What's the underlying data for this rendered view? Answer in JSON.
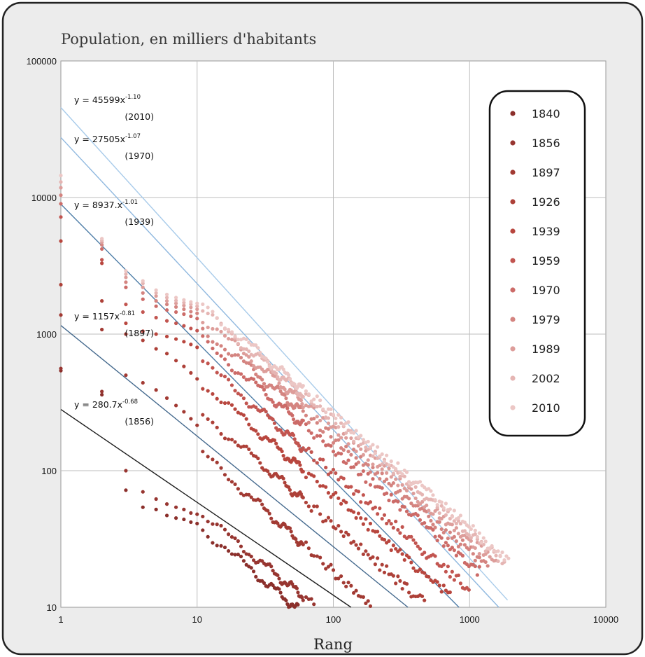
{
  "chart_data": {
    "type": "scatter",
    "title": "Population, en milliers d'habitants",
    "xlabel": "Rang",
    "ylabel": "",
    "x_scale": "log",
    "y_scale": "log",
    "xlim": [
      1,
      10000
    ],
    "ylim": [
      10,
      100000
    ],
    "x_ticks": [
      "1",
      "10",
      "100",
      "1000",
      "10000"
    ],
    "y_ticks": [
      "10",
      "100",
      "1000",
      "10000",
      "100000"
    ],
    "grid": true,
    "legend_position": "right",
    "series": [
      {
        "name": "1840",
        "color": "#8b2f2b",
        "a": 280,
        "b": 0.84,
        "n": 90,
        "lead": [
          [
            1,
            540
          ],
          [
            2,
            360
          ],
          [
            3,
            72
          ],
          [
            4,
            54
          ],
          [
            5,
            52
          ],
          [
            6,
            47
          ],
          [
            7,
            45
          ],
          [
            8,
            44
          ],
          [
            9,
            42
          ],
          [
            10,
            41
          ]
        ]
      },
      {
        "name": "1856",
        "color": "#973530",
        "a": 320,
        "b": 0.8,
        "n": 130,
        "lead": [
          [
            1,
            560
          ],
          [
            2,
            380
          ],
          [
            3,
            100
          ],
          [
            4,
            70
          ],
          [
            5,
            62
          ],
          [
            6,
            57
          ],
          [
            7,
            54
          ],
          [
            8,
            52
          ],
          [
            9,
            49
          ],
          [
            10,
            48
          ]
        ]
      },
      {
        "name": "1897",
        "color": "#a23a33",
        "a": 1150,
        "b": 0.9,
        "n": 330,
        "lead": [
          [
            1,
            1380
          ],
          [
            2,
            1080
          ],
          [
            3,
            500
          ],
          [
            4,
            440
          ],
          [
            5,
            390
          ],
          [
            6,
            340
          ],
          [
            7,
            300
          ],
          [
            8,
            270
          ],
          [
            9,
            240
          ],
          [
            10,
            215
          ]
        ]
      },
      {
        "name": "1926",
        "color": "#ad4038",
        "a": 2000,
        "b": 0.85,
        "n": 480,
        "lead": [
          [
            1,
            2300
          ],
          [
            2,
            1750
          ],
          [
            3,
            1000
          ],
          [
            4,
            900
          ],
          [
            5,
            780
          ],
          [
            6,
            720
          ],
          [
            7,
            640
          ],
          [
            8,
            580
          ],
          [
            9,
            520
          ],
          [
            10,
            470
          ]
        ]
      },
      {
        "name": "1939",
        "color": "#b8463e",
        "a": 3300,
        "b": 0.85,
        "n": 720,
        "lead": [
          [
            1,
            4800
          ],
          [
            2,
            3300
          ],
          [
            3,
            1200
          ],
          [
            4,
            1050
          ],
          [
            5,
            1000
          ],
          [
            6,
            960
          ],
          [
            7,
            920
          ],
          [
            8,
            880
          ],
          [
            9,
            840
          ],
          [
            10,
            800
          ]
        ]
      },
      {
        "name": "1959",
        "color": "#c25550",
        "a": 4800,
        "b": 0.85,
        "n": 1000,
        "lead": [
          [
            1,
            7200
          ],
          [
            2,
            3500
          ],
          [
            3,
            1650
          ],
          [
            4,
            1450
          ],
          [
            5,
            1320
          ],
          [
            6,
            1250
          ],
          [
            7,
            1200
          ],
          [
            8,
            1150
          ],
          [
            9,
            1100
          ],
          [
            10,
            1060
          ]
        ]
      },
      {
        "name": "1970",
        "color": "#cc6b68",
        "a": 6500,
        "b": 0.83,
        "n": 1200,
        "lead": [
          [
            1,
            9000
          ],
          [
            2,
            4200
          ],
          [
            3,
            2200
          ],
          [
            4,
            1800
          ],
          [
            5,
            1600
          ],
          [
            6,
            1500
          ],
          [
            7,
            1450
          ],
          [
            8,
            1400
          ],
          [
            9,
            1350
          ],
          [
            10,
            1300
          ]
        ]
      },
      {
        "name": "1979",
        "color": "#d48480",
        "a": 8000,
        "b": 0.83,
        "n": 1400,
        "lead": [
          [
            1,
            10400
          ],
          [
            2,
            4500
          ],
          [
            3,
            2400
          ],
          [
            4,
            2000
          ],
          [
            5,
            1750
          ],
          [
            6,
            1650
          ],
          [
            7,
            1580
          ],
          [
            8,
            1520
          ],
          [
            9,
            1460
          ],
          [
            10,
            1420
          ]
        ]
      },
      {
        "name": "1989",
        "color": "#dd9d9a",
        "a": 9500,
        "b": 0.83,
        "n": 1600,
        "lead": [
          [
            1,
            11800
          ],
          [
            2,
            4700
          ],
          [
            3,
            2600
          ],
          [
            4,
            2200
          ],
          [
            5,
            1900
          ],
          [
            6,
            1750
          ],
          [
            7,
            1680
          ],
          [
            8,
            1620
          ],
          [
            9,
            1570
          ],
          [
            10,
            1520
          ]
        ]
      },
      {
        "name": "2002",
        "color": "#e5b5b3",
        "a": 10800,
        "b": 0.83,
        "n": 1800,
        "lead": [
          [
            1,
            13000
          ],
          [
            2,
            4850
          ],
          [
            3,
            2750
          ],
          [
            4,
            2350
          ],
          [
            5,
            2000
          ],
          [
            6,
            1850
          ],
          [
            7,
            1760
          ],
          [
            8,
            1700
          ],
          [
            9,
            1650
          ],
          [
            10,
            1600
          ]
        ]
      },
      {
        "name": "2010",
        "color": "#ecc7c5",
        "a": 11800,
        "b": 0.83,
        "n": 1950,
        "lead": [
          [
            1,
            14500
          ],
          [
            2,
            5000
          ],
          [
            3,
            2900
          ],
          [
            4,
            2450
          ],
          [
            5,
            2100
          ],
          [
            6,
            1950
          ],
          [
            7,
            1850
          ],
          [
            8,
            1780
          ],
          [
            9,
            1720
          ],
          [
            10,
            1680
          ]
        ]
      }
    ],
    "fit_lines": [
      {
        "a": 45599,
        "b": 1.1,
        "color": "#a8cbea",
        "x_max": 1900
      },
      {
        "a": 27505,
        "b": 1.07,
        "color": "#8fb8df",
        "x_max": 1900
      },
      {
        "a": 8937,
        "b": 1.01,
        "color": "#4f7ea8",
        "x_max": 1900
      },
      {
        "a": 1157,
        "b": 0.81,
        "color": "#44698d",
        "x_max": 1900
      },
      {
        "a": 280.7,
        "b": 0.68,
        "color": "#1e1e1e",
        "x_max": 1900
      }
    ],
    "annotations": [
      {
        "eq": "y = 45599x",
        "exp": "-1.10",
        "year": "(2010)"
      },
      {
        "eq": "y = 27505x",
        "exp": "-1.07",
        "year": "(1970)"
      },
      {
        "eq": "y = 8937.x",
        "exp": "-1.01",
        "year": "(1939)"
      },
      {
        "eq": "y = 1157x",
        "exp": "-0.81",
        "year": "(1897)"
      },
      {
        "eq": "y = 280.7x",
        "exp": "-0.68",
        "year": "(1856)"
      }
    ]
  }
}
